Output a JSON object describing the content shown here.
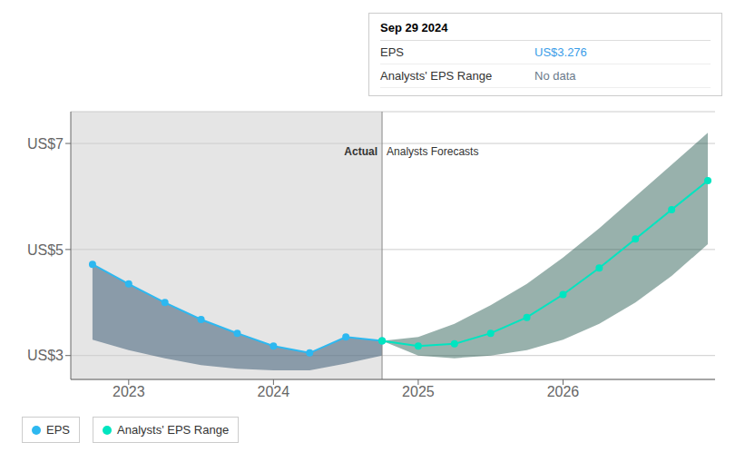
{
  "chart_data": {
    "type": "line",
    "series": [
      {
        "name": "EPS",
        "type": "line",
        "color": "#2db8f0",
        "marker": "circle",
        "x": [
          2022.75,
          2023.0,
          2023.25,
          2023.5,
          2023.75,
          2024.0,
          2024.25,
          2024.5,
          2024.75
        ],
        "values": [
          4.72,
          4.35,
          4.0,
          3.68,
          3.42,
          3.18,
          3.05,
          3.35,
          3.276
        ],
        "band_upper": [
          4.72,
          4.35,
          4.0,
          3.68,
          3.42,
          3.18,
          3.05,
          3.35,
          3.276
        ],
        "band_lower": [
          3.3,
          3.1,
          2.95,
          2.82,
          2.75,
          2.72,
          2.72,
          2.85,
          3.0
        ],
        "band_color": "#1a4060"
      },
      {
        "name": "Analysts' EPS Range",
        "type": "line",
        "color": "#00e5c0",
        "marker": "circle",
        "x": [
          2024.75,
          2025.0,
          2025.25,
          2025.5,
          2025.75,
          2026.0,
          2026.25,
          2026.5,
          2026.75,
          2027.0
        ],
        "values": [
          3.276,
          3.18,
          3.22,
          3.42,
          3.72,
          4.15,
          4.65,
          5.2,
          5.75,
          6.3
        ],
        "band_upper": [
          3.276,
          3.35,
          3.6,
          3.95,
          4.35,
          4.85,
          5.4,
          6.0,
          6.6,
          7.2
        ],
        "band_lower": [
          3.276,
          3.0,
          2.95,
          3.0,
          3.1,
          3.3,
          3.6,
          4.0,
          4.5,
          5.1
        ],
        "band_color": "#1a5248"
      }
    ],
    "xlim": [
      2022.6,
      2027.05
    ],
    "xticks": [
      2023,
      2024,
      2025,
      2026
    ],
    "ylim": [
      2.55,
      7.6
    ],
    "yticks": [
      {
        "value": 3,
        "label": "US$3"
      },
      {
        "value": 5,
        "label": "US$5"
      },
      {
        "value": 7,
        "label": "US$7"
      }
    ],
    "grid": true,
    "legend": "bottom left",
    "reference_lines": [
      {
        "x": 2024.75
      }
    ],
    "shaded_regions": [
      {
        "x1": 2022.6,
        "x2": 2024.75
      }
    ],
    "annotations": [
      {
        "text": "Actual",
        "x": 2024.75,
        "y": 6.85,
        "position": "left"
      },
      {
        "text": "Analysts Forecasts",
        "x": 2024.75,
        "y": 6.85,
        "position": "right"
      }
    ],
    "tooltip": {
      "title": "Sep 29 2024",
      "rows": [
        {
          "label": "EPS",
          "value": "US$3.276",
          "color": "#3a9de8"
        },
        {
          "label": "Analysts' EPS Range",
          "value": "No data",
          "color": "#6a7a8a"
        }
      ]
    }
  }
}
